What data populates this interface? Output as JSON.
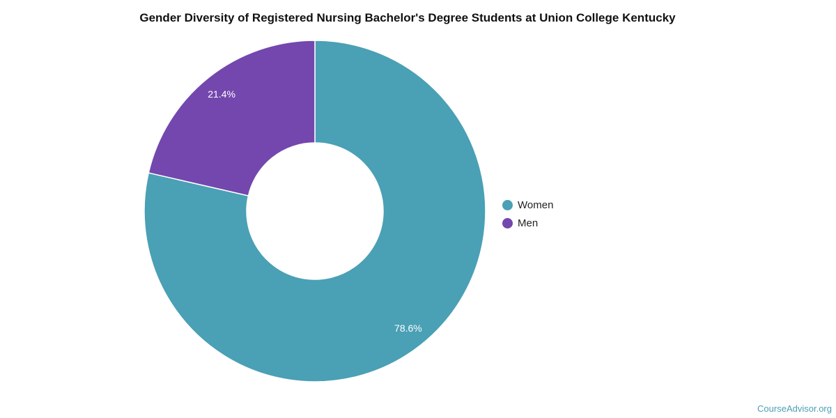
{
  "chart_data": {
    "type": "pie",
    "variant": "donut",
    "title": "Gender Diversity of Registered Nursing Bachelor's Degree Students at Union College Kentucky",
    "slices": [
      {
        "label": "Women",
        "value": 78.6,
        "display": "78.6%",
        "color": "#4aa0b5"
      },
      {
        "label": "Men",
        "value": 21.4,
        "display": "21.4%",
        "color": "#7347ae"
      }
    ],
    "legend_position": "right"
  },
  "legend": {
    "items": [
      {
        "label": "Women",
        "color": "#4aa0b5"
      },
      {
        "label": "Men",
        "color": "#7347ae"
      }
    ]
  },
  "watermark": "CourseAdvisor.org"
}
